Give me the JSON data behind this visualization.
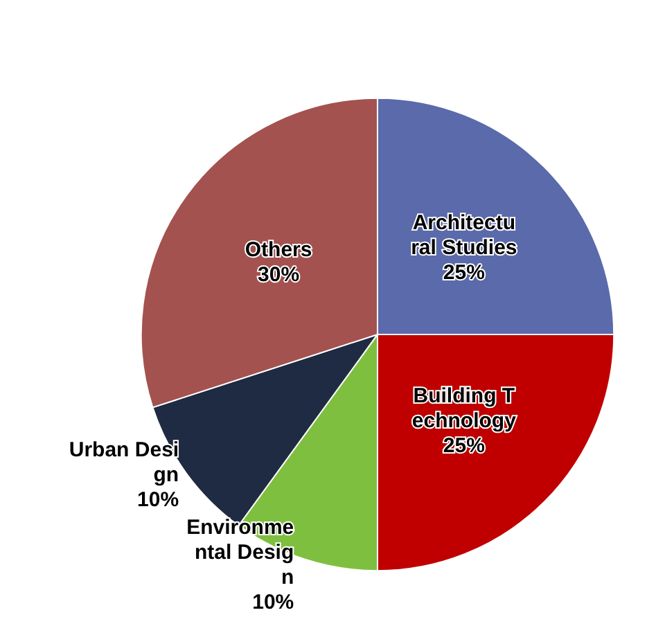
{
  "chart_data": {
    "type": "pie",
    "categories": [
      "Architectural Studies",
      "Building Technology",
      "Environmental Design",
      "Urban Design",
      "Others"
    ],
    "values": [
      25,
      25,
      10,
      10,
      30
    ],
    "value_labels": [
      "25%",
      "25%",
      "10%",
      "10%",
      "30%"
    ],
    "colors": [
      "#5a6aaa",
      "#c00000",
      "#7fbf3f",
      "#1f2b42",
      "#a3524f"
    ],
    "legend": false
  }
}
